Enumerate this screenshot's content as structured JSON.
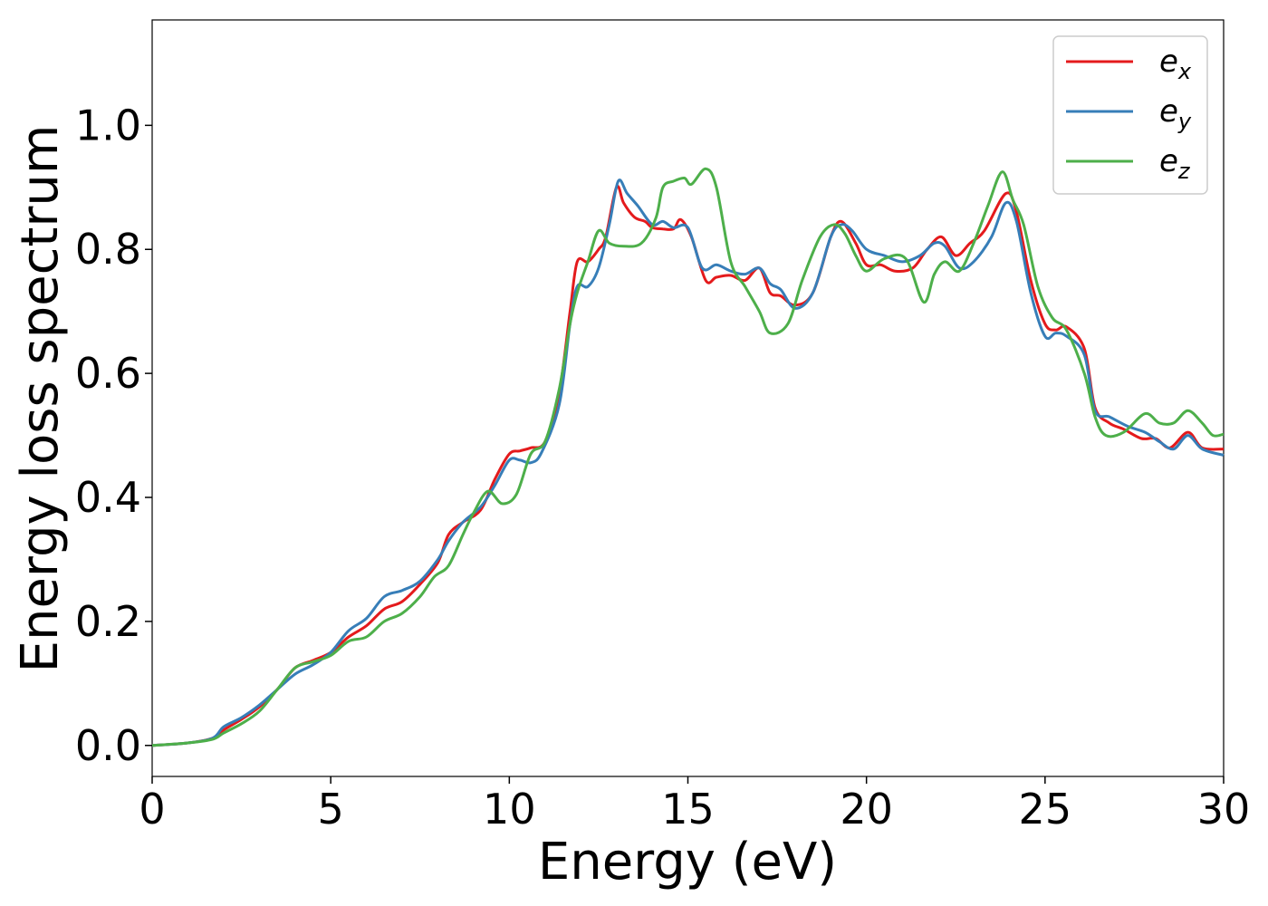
{
  "chart_data": {
    "type": "line",
    "title": "",
    "xlabel": "Energy (eV)",
    "ylabel": "Energy loss spectrum",
    "xlim": [
      0,
      30
    ],
    "ylim": [
      -0.05,
      1.17
    ],
    "xticks": [
      0,
      5,
      10,
      15,
      20,
      25,
      30
    ],
    "xtick_labels": [
      "0",
      "5",
      "10",
      "15",
      "20",
      "25",
      "30"
    ],
    "yticks": [
      0.0,
      0.2,
      0.4,
      0.6,
      0.8,
      1.0
    ],
    "ytick_labels": [
      "0.0",
      "0.2",
      "0.4",
      "0.6",
      "0.8",
      "1.0"
    ],
    "grid": false,
    "legend_position": "top-right",
    "series": [
      {
        "name": "e_x",
        "label_main": "e",
        "label_sub": "x",
        "color": "#e41a1c",
        "points": [
          [
            0,
            0
          ],
          [
            1,
            0.004
          ],
          [
            1.7,
            0.012
          ],
          [
            2,
            0.025
          ],
          [
            2.5,
            0.042
          ],
          [
            3,
            0.062
          ],
          [
            3.5,
            0.09
          ],
          [
            4,
            0.125
          ],
          [
            4.5,
            0.137
          ],
          [
            5,
            0.15
          ],
          [
            5.5,
            0.175
          ],
          [
            6,
            0.193
          ],
          [
            6.5,
            0.22
          ],
          [
            7,
            0.232
          ],
          [
            7.5,
            0.26
          ],
          [
            8,
            0.295
          ],
          [
            8.3,
            0.34
          ],
          [
            8.7,
            0.36
          ],
          [
            9.2,
            0.38
          ],
          [
            9.6,
            0.43
          ],
          [
            10,
            0.47
          ],
          [
            10.3,
            0.475
          ],
          [
            10.6,
            0.48
          ],
          [
            11,
            0.49
          ],
          [
            11.4,
            0.57
          ],
          [
            11.7,
            0.7
          ],
          [
            11.9,
            0.78
          ],
          [
            12.2,
            0.78
          ],
          [
            12.5,
            0.8
          ],
          [
            12.7,
            0.82
          ],
          [
            13,
            0.9
          ],
          [
            13.2,
            0.875
          ],
          [
            13.5,
            0.852
          ],
          [
            13.8,
            0.845
          ],
          [
            14,
            0.835
          ],
          [
            14.3,
            0.833
          ],
          [
            14.6,
            0.833
          ],
          [
            14.8,
            0.848
          ],
          [
            15.1,
            0.82
          ],
          [
            15.5,
            0.75
          ],
          [
            15.8,
            0.755
          ],
          [
            16.2,
            0.758
          ],
          [
            16.6,
            0.75
          ],
          [
            17,
            0.77
          ],
          [
            17.3,
            0.73
          ],
          [
            17.6,
            0.725
          ],
          [
            18,
            0.71
          ],
          [
            18.5,
            0.73
          ],
          [
            19,
            0.82
          ],
          [
            19.3,
            0.845
          ],
          [
            19.7,
            0.81
          ],
          [
            20,
            0.775
          ],
          [
            20.4,
            0.775
          ],
          [
            20.8,
            0.765
          ],
          [
            21.3,
            0.77
          ],
          [
            21.7,
            0.8
          ],
          [
            22.1,
            0.82
          ],
          [
            22.5,
            0.79
          ],
          [
            22.9,
            0.81
          ],
          [
            23.3,
            0.83
          ],
          [
            23.9,
            0.89
          ],
          [
            24.2,
            0.86
          ],
          [
            24.6,
            0.75
          ],
          [
            25,
            0.68
          ],
          [
            25.3,
            0.67
          ],
          [
            25.6,
            0.675
          ],
          [
            26.1,
            0.64
          ],
          [
            26.4,
            0.545
          ],
          [
            26.8,
            0.52
          ],
          [
            27.2,
            0.51
          ],
          [
            27.7,
            0.495
          ],
          [
            28.1,
            0.495
          ],
          [
            28.5,
            0.48
          ],
          [
            29,
            0.505
          ],
          [
            29.4,
            0.48
          ],
          [
            30,
            0.478
          ]
        ]
      },
      {
        "name": "e_y",
        "label_main": "e",
        "label_sub": "y",
        "color": "#377eb8",
        "points": [
          [
            0,
            0
          ],
          [
            1,
            0.004
          ],
          [
            1.7,
            0.012
          ],
          [
            2,
            0.03
          ],
          [
            2.5,
            0.045
          ],
          [
            3,
            0.065
          ],
          [
            3.5,
            0.09
          ],
          [
            4,
            0.115
          ],
          [
            4.5,
            0.13
          ],
          [
            5,
            0.15
          ],
          [
            5.5,
            0.185
          ],
          [
            6,
            0.205
          ],
          [
            6.5,
            0.24
          ],
          [
            7,
            0.25
          ],
          [
            7.5,
            0.265
          ],
          [
            8,
            0.3
          ],
          [
            8.3,
            0.33
          ],
          [
            8.7,
            0.36
          ],
          [
            9.2,
            0.385
          ],
          [
            9.6,
            0.42
          ],
          [
            10,
            0.46
          ],
          [
            10.3,
            0.46
          ],
          [
            10.6,
            0.456
          ],
          [
            10.9,
            0.472
          ],
          [
            11.4,
            0.55
          ],
          [
            11.7,
            0.68
          ],
          [
            11.9,
            0.74
          ],
          [
            12.2,
            0.74
          ],
          [
            12.5,
            0.77
          ],
          [
            12.8,
            0.84
          ],
          [
            13.05,
            0.91
          ],
          [
            13.3,
            0.89
          ],
          [
            13.6,
            0.87
          ],
          [
            14,
            0.84
          ],
          [
            14.3,
            0.845
          ],
          [
            14.6,
            0.835
          ],
          [
            15,
            0.835
          ],
          [
            15.4,
            0.77
          ],
          [
            15.8,
            0.775
          ],
          [
            16.2,
            0.765
          ],
          [
            16.6,
            0.76
          ],
          [
            17,
            0.77
          ],
          [
            17.3,
            0.745
          ],
          [
            17.6,
            0.735
          ],
          [
            18,
            0.705
          ],
          [
            18.5,
            0.73
          ],
          [
            19,
            0.82
          ],
          [
            19.3,
            0.84
          ],
          [
            19.6,
            0.83
          ],
          [
            20,
            0.8
          ],
          [
            20.5,
            0.79
          ],
          [
            21,
            0.78
          ],
          [
            21.5,
            0.79
          ],
          [
            21.9,
            0.81
          ],
          [
            22.2,
            0.805
          ],
          [
            22.6,
            0.77
          ],
          [
            23,
            0.78
          ],
          [
            23.5,
            0.82
          ],
          [
            23.9,
            0.875
          ],
          [
            24.2,
            0.845
          ],
          [
            24.6,
            0.73
          ],
          [
            25,
            0.66
          ],
          [
            25.3,
            0.665
          ],
          [
            25.6,
            0.66
          ],
          [
            26.1,
            0.63
          ],
          [
            26.4,
            0.54
          ],
          [
            26.8,
            0.53
          ],
          [
            27.3,
            0.515
          ],
          [
            27.8,
            0.505
          ],
          [
            28.2,
            0.49
          ],
          [
            28.6,
            0.478
          ],
          [
            29,
            0.5
          ],
          [
            29.4,
            0.478
          ],
          [
            30,
            0.468
          ]
        ]
      },
      {
        "name": "e_z",
        "label_main": "e",
        "label_sub": "z",
        "color": "#4daf4a",
        "points": [
          [
            0,
            0
          ],
          [
            1,
            0.004
          ],
          [
            1.7,
            0.01
          ],
          [
            2,
            0.02
          ],
          [
            2.5,
            0.035
          ],
          [
            3,
            0.055
          ],
          [
            3.5,
            0.09
          ],
          [
            4,
            0.125
          ],
          [
            4.5,
            0.135
          ],
          [
            5,
            0.145
          ],
          [
            5.5,
            0.168
          ],
          [
            6,
            0.175
          ],
          [
            6.5,
            0.2
          ],
          [
            7,
            0.213
          ],
          [
            7.5,
            0.24
          ],
          [
            7.9,
            0.272
          ],
          [
            8.3,
            0.29
          ],
          [
            8.7,
            0.34
          ],
          [
            9,
            0.375
          ],
          [
            9.4,
            0.41
          ],
          [
            9.8,
            0.39
          ],
          [
            10.2,
            0.405
          ],
          [
            10.6,
            0.47
          ],
          [
            11,
            0.49
          ],
          [
            11.4,
            0.575
          ],
          [
            11.7,
            0.68
          ],
          [
            11.9,
            0.73
          ],
          [
            12.2,
            0.78
          ],
          [
            12.5,
            0.83
          ],
          [
            12.8,
            0.81
          ],
          [
            13.2,
            0.805
          ],
          [
            13.7,
            0.81
          ],
          [
            14.1,
            0.85
          ],
          [
            14.3,
            0.9
          ],
          [
            14.6,
            0.91
          ],
          [
            14.9,
            0.915
          ],
          [
            15.1,
            0.905
          ],
          [
            15.5,
            0.93
          ],
          [
            15.8,
            0.9
          ],
          [
            16.2,
            0.78
          ],
          [
            16.6,
            0.74
          ],
          [
            17,
            0.7
          ],
          [
            17.3,
            0.665
          ],
          [
            17.8,
            0.68
          ],
          [
            18.2,
            0.75
          ],
          [
            18.7,
            0.82
          ],
          [
            19.1,
            0.84
          ],
          [
            19.4,
            0.825
          ],
          [
            19.7,
            0.79
          ],
          [
            20,
            0.765
          ],
          [
            20.5,
            0.785
          ],
          [
            21.1,
            0.785
          ],
          [
            21.6,
            0.715
          ],
          [
            21.9,
            0.76
          ],
          [
            22.2,
            0.78
          ],
          [
            22.6,
            0.765
          ],
          [
            23,
            0.81
          ],
          [
            23.4,
            0.87
          ],
          [
            23.8,
            0.925
          ],
          [
            24.1,
            0.88
          ],
          [
            24.4,
            0.84
          ],
          [
            24.8,
            0.74
          ],
          [
            25.2,
            0.69
          ],
          [
            25.6,
            0.67
          ],
          [
            26.1,
            0.6
          ],
          [
            26.4,
            0.53
          ],
          [
            26.7,
            0.5
          ],
          [
            27.2,
            0.505
          ],
          [
            27.8,
            0.535
          ],
          [
            28.2,
            0.52
          ],
          [
            28.6,
            0.52
          ],
          [
            29,
            0.54
          ],
          [
            29.4,
            0.52
          ],
          [
            29.7,
            0.5
          ],
          [
            30,
            0.502
          ]
        ]
      }
    ]
  }
}
